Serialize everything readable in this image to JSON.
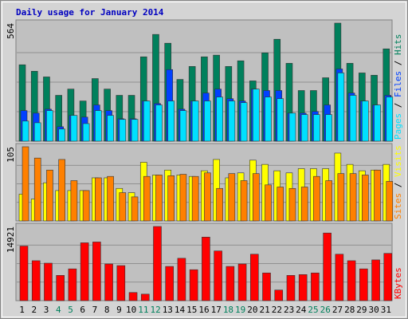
{
  "chart_data": [
    {
      "type": "bar",
      "title": "Daily usage for January 2014",
      "ylim": [
        0,
        564
      ],
      "series": [
        {
          "name": "Hits",
          "color": "#00805c",
          "values": [
            365,
            334,
            307,
            219,
            249,
            192,
            299,
            249,
            219,
            219,
            403,
            510,
            468,
            295,
            357,
            403,
            411,
            357,
            384,
            288,
            422,
            487,
            372,
            242,
            242,
            303,
            564,
            372,
            326,
            315,
            441
          ]
        },
        {
          "name": "Files",
          "color": "#0040ff",
          "values": [
            146,
            134,
            153,
            69,
            123,
            115,
            173,
            146,
            107,
            107,
            192,
            180,
            342,
            153,
            192,
            230,
            249,
            203,
            192,
            249,
            242,
            242,
            134,
            134,
            142,
            173,
            345,
            230,
            192,
            173,
            219
          ]
        },
        {
          "name": "Pages",
          "color": "#00e0ff",
          "values": [
            96,
            88,
            146,
            58,
            123,
            84,
            146,
            123,
            104,
            104,
            192,
            173,
            192,
            146,
            192,
            192,
            211,
            192,
            184,
            249,
            211,
            203,
            134,
            127,
            127,
            127,
            326,
            219,
            192,
            173,
            211
          ]
        }
      ]
    },
    {
      "type": "bar",
      "ylim": [
        0,
        105
      ],
      "series": [
        {
          "name": "Visits",
          "color": "#ffff00",
          "values": [
            38,
            31,
            54,
            43,
            43,
            43,
            61,
            61,
            46,
            40,
            83,
            65,
            72,
            65,
            63,
            71,
            87,
            61,
            68,
            86,
            80,
            71,
            68,
            74,
            74,
            74,
            96,
            80,
            71,
            72,
            80
          ]
        },
        {
          "name": "Sites",
          "color": "#ff8000",
          "values": [
            105,
            89,
            72,
            87,
            57,
            43,
            61,
            63,
            40,
            34,
            63,
            65,
            64,
            66,
            63,
            68,
            46,
            67,
            57,
            67,
            51,
            48,
            46,
            48,
            63,
            57,
            67,
            67,
            65,
            72,
            56
          ]
        }
      ]
    },
    {
      "type": "bar",
      "ylim": [
        0,
        14921
      ],
      "series": [
        {
          "name": "KBytes",
          "color": "#ff0000",
          "values": [
            10986,
            8035,
            7542,
            5083,
            6395,
            11642,
            11805,
            7378,
            7051,
            1640,
            1312,
            14921,
            6887,
            8526,
            6231,
            12789,
            10002,
            6887,
            7378,
            9346,
            5575,
            2132,
            5083,
            5247,
            5575,
            13609,
            9346,
            8035,
            6395,
            8198,
            9510
          ]
        }
      ],
      "categories": [
        "1",
        "2",
        "3",
        "4",
        "5",
        "6",
        "7",
        "8",
        "9",
        "10",
        "11",
        "12",
        "13",
        "14",
        "15",
        "16",
        "17",
        "18",
        "19",
        "20",
        "21",
        "22",
        "23",
        "24",
        "25",
        "26",
        "27",
        "28",
        "29",
        "30",
        "31"
      ],
      "category_colors": [
        "#000",
        "#000",
        "#000",
        "#00805c",
        "#00805c",
        "#000",
        "#000",
        "#000",
        "#000",
        "#000",
        "#00805c",
        "#00805c",
        "#000",
        "#000",
        "#000",
        "#000",
        "#000",
        "#00805c",
        "#00805c",
        "#000",
        "#000",
        "#000",
        "#000",
        "#000",
        "#00805c",
        "#00805c",
        "#000",
        "#000",
        "#000",
        "#000",
        "#000"
      ]
    }
  ]
}
